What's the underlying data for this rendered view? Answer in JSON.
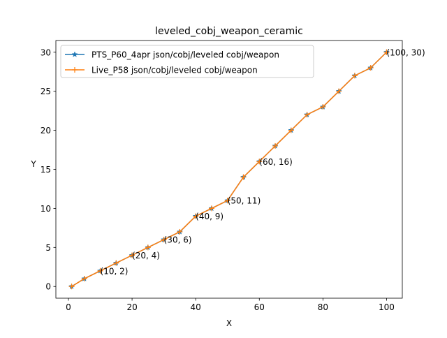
{
  "chart_data": {
    "type": "line",
    "title": "leveled_cobj_weapon_ceramic",
    "xlabel": "X",
    "ylabel": "Y",
    "xlim": [
      -3.95,
      104.95
    ],
    "ylim": [
      -1.5,
      31.5
    ],
    "xticks": [
      0,
      20,
      40,
      60,
      80,
      100
    ],
    "yticks": [
      0,
      5,
      10,
      15,
      20,
      25,
      30
    ],
    "grid": false,
    "legend_position": "upper left",
    "series": [
      {
        "name": "PTS_P60_4apr json/cobj/leveled cobj/weapon",
        "color": "#1f77b4",
        "marker": "star",
        "x": [
          1,
          5,
          10,
          15,
          20,
          25,
          30,
          35,
          40,
          45,
          50,
          55,
          60,
          65,
          70,
          75,
          80,
          85,
          90,
          95,
          100
        ],
        "y": [
          0,
          1,
          2,
          3,
          4,
          5,
          6,
          7,
          9,
          10,
          11,
          14,
          16,
          18,
          20,
          22,
          23,
          25,
          27,
          28,
          30
        ]
      },
      {
        "name": "Live_P58 json/cobj/leveled cobj/weapon",
        "color": "#ff7f0e",
        "marker": "plus",
        "x": [
          1,
          5,
          10,
          15,
          20,
          25,
          30,
          35,
          40,
          45,
          50,
          55,
          60,
          65,
          70,
          75,
          80,
          85,
          90,
          95,
          100
        ],
        "y": [
          0,
          1,
          2,
          3,
          4,
          5,
          6,
          7,
          9,
          10,
          11,
          14,
          16,
          18,
          20,
          22,
          23,
          25,
          27,
          28,
          30
        ]
      }
    ],
    "annotations": [
      {
        "x": 10,
        "y": 2,
        "text": "(10, 2)"
      },
      {
        "x": 20,
        "y": 4,
        "text": "(20, 4)"
      },
      {
        "x": 30,
        "y": 6,
        "text": "(30, 6)"
      },
      {
        "x": 40,
        "y": 9,
        "text": "(40, 9)"
      },
      {
        "x": 50,
        "y": 11,
        "text": "(50, 11)"
      },
      {
        "x": 60,
        "y": 16,
        "text": "(60, 16)"
      },
      {
        "x": 100,
        "y": 30,
        "text": "(100, 30)"
      }
    ]
  }
}
